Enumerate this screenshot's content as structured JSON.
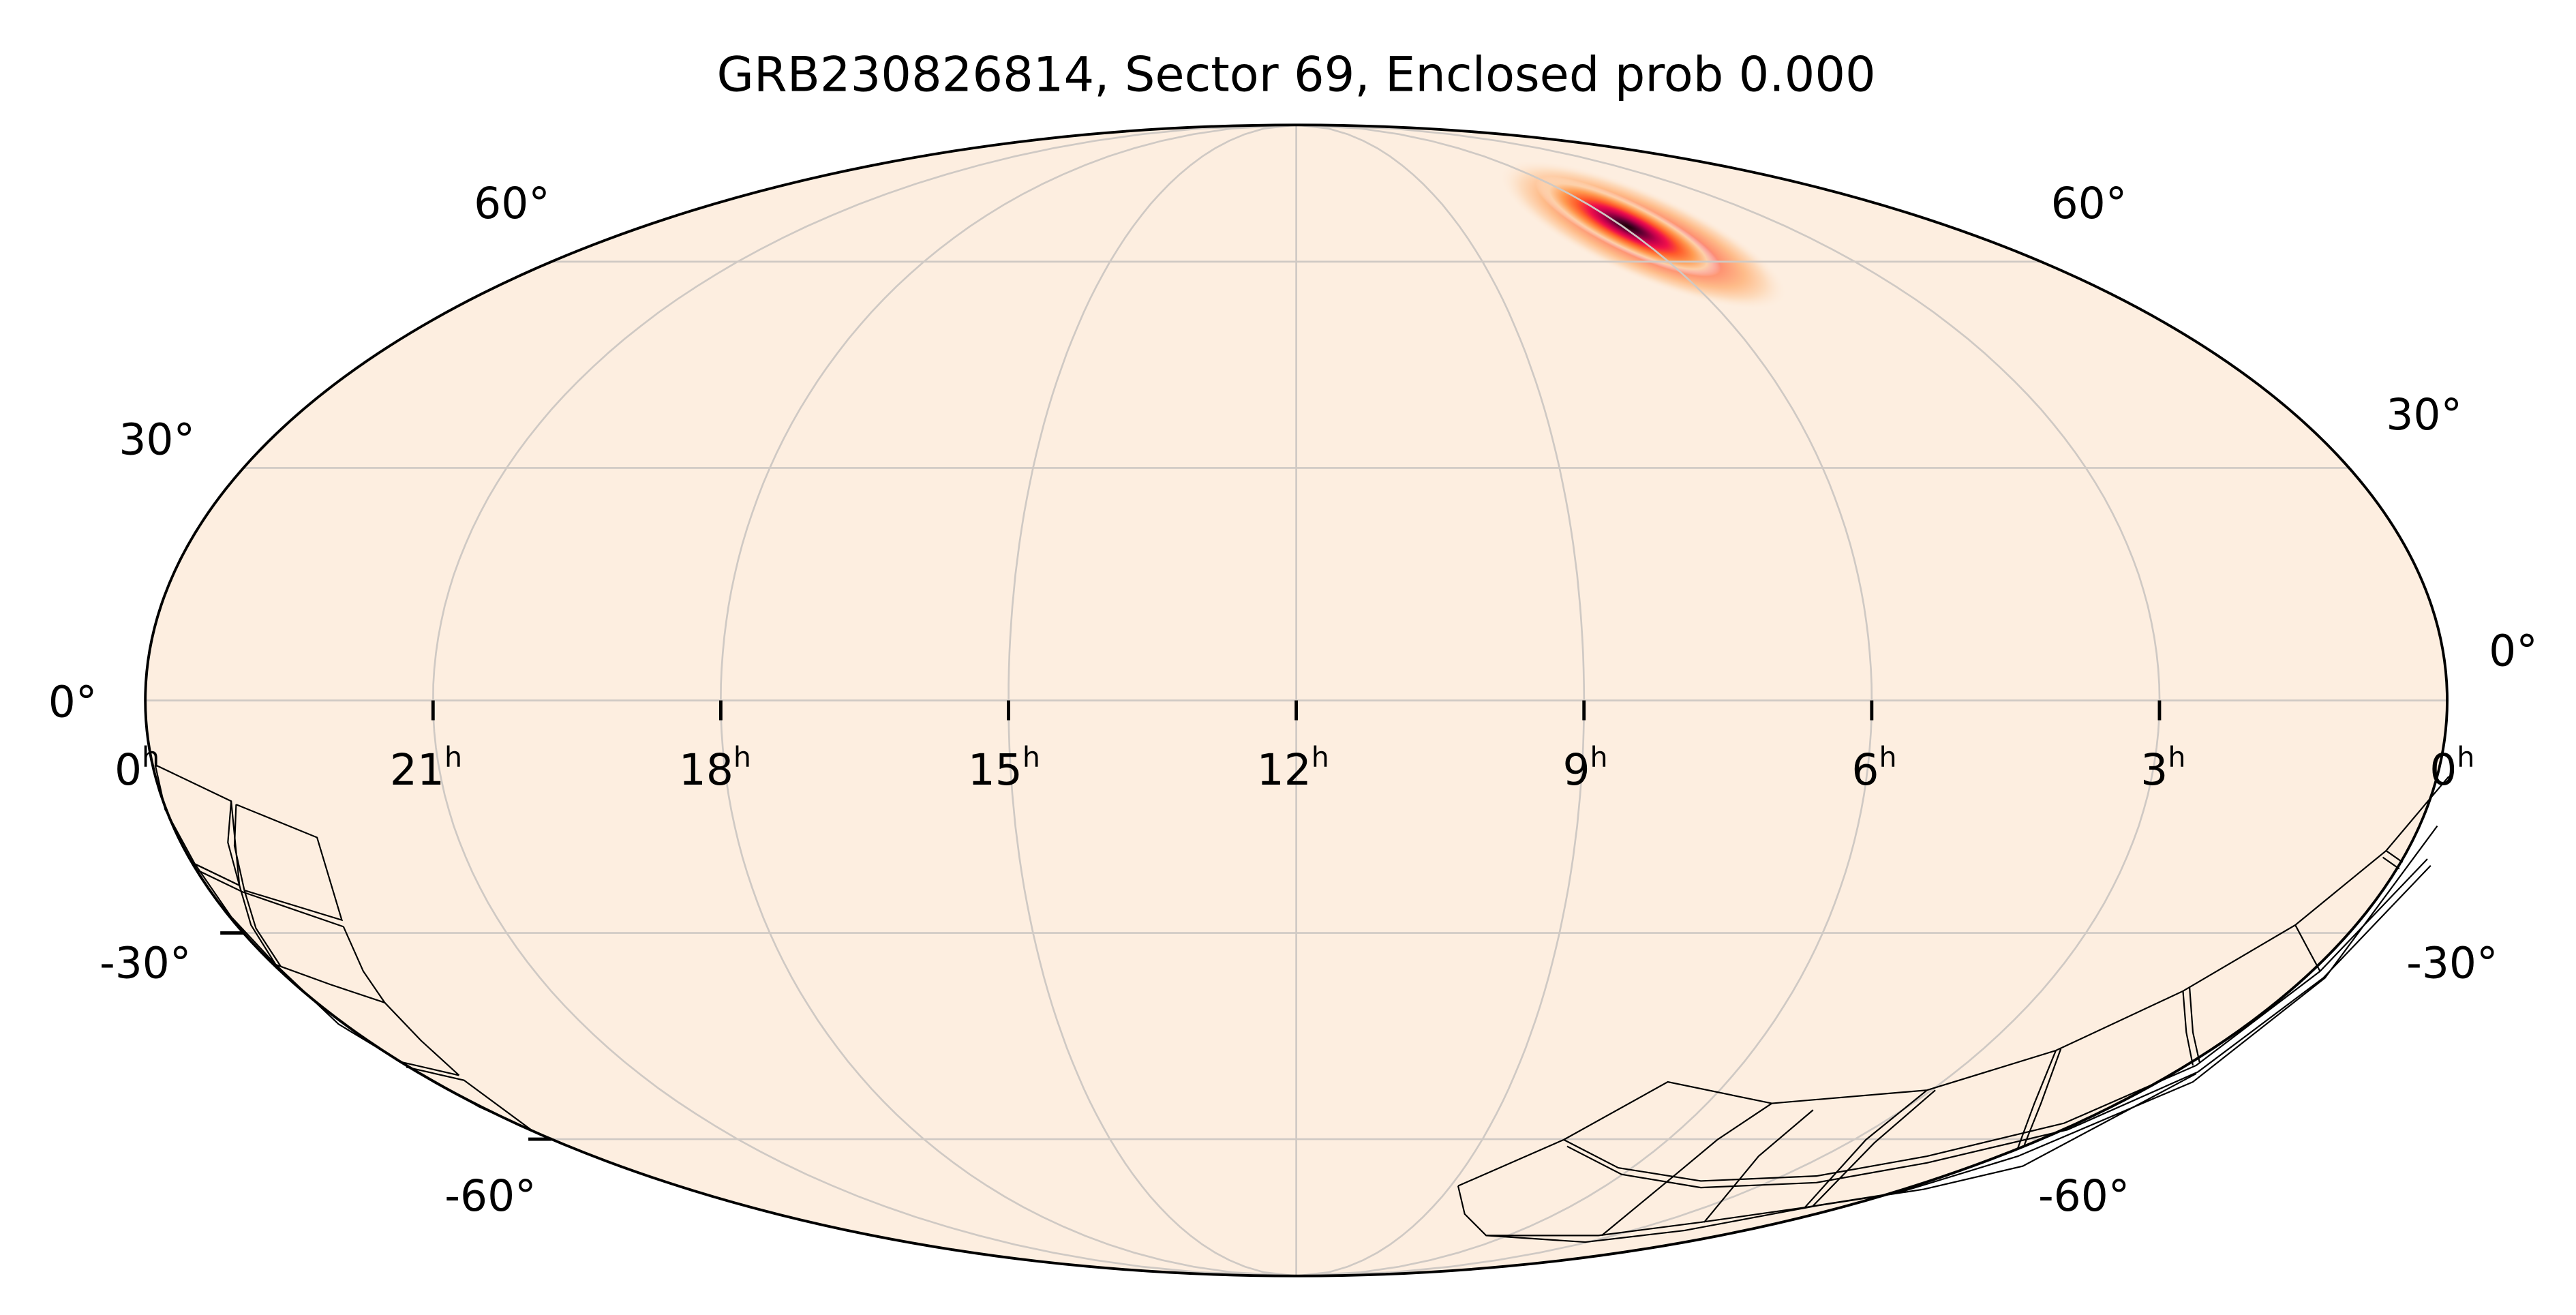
{
  "chart_data": {
    "type": "heatmap",
    "projection": "mollweide",
    "title": "GRB230826814, Sector 69, Enclosed prob 0.000",
    "ra_ticks": [
      "0",
      "21",
      "18",
      "15",
      "12",
      "9",
      "6",
      "3",
      "0"
    ],
    "ra_tick_hours": [
      24,
      21,
      18,
      15,
      12,
      9,
      6,
      3,
      0
    ],
    "ra_unit": "h",
    "dec_ticks_left": [
      "60°",
      "30°",
      "0°",
      "-30°",
      "-60°"
    ],
    "dec_ticks_right": [
      "60°",
      "30°",
      "0°",
      "-30°",
      "-60°"
    ],
    "dec_grid_deg": [
      -60,
      -30,
      0,
      30,
      60
    ],
    "grid": true,
    "probability_peak": {
      "ra_hours": 6,
      "dec_deg": 65
    },
    "enclosed_probability": 0.0,
    "sector": 69
  },
  "colors": {
    "background_fill": "#fdeee0",
    "grid": "#cfc9c4",
    "outline": "#000000",
    "peak": "#1a0005",
    "mid": "#e0004a",
    "outer": "#ff8a3d"
  }
}
